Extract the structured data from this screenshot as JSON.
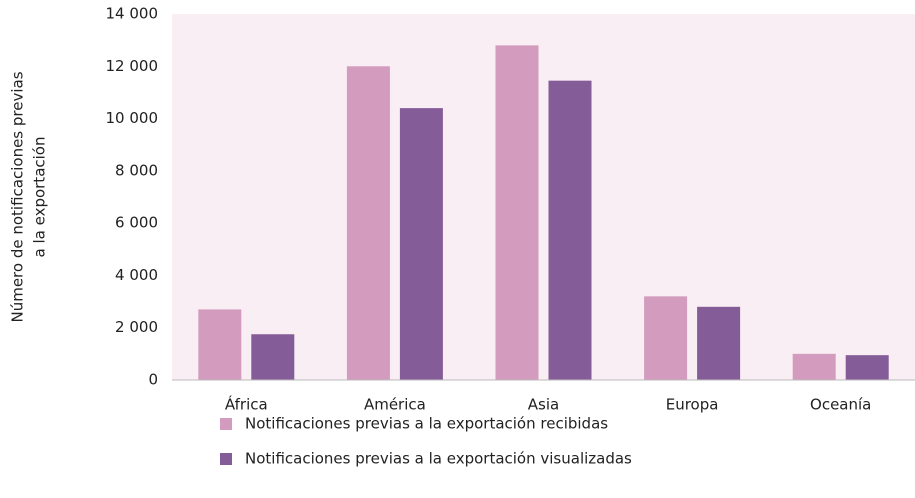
{
  "chart_data": {
    "type": "bar",
    "ylabel": [
      "Número de notificaciones previas",
      "a la exportación"
    ],
    "categories": [
      "África",
      "América",
      "Asia",
      "Europa",
      "Oceanía"
    ],
    "series": [
      {
        "name": "Notificaciones previas a la exportación recibidas",
        "color": "#d39bbd",
        "values": [
          2700,
          12000,
          12800,
          3200,
          1000
        ]
      },
      {
        "name": "Notificaciones previas a la exportación visualizadas",
        "color": "#845c98",
        "values": [
          1750,
          10400,
          11450,
          2800,
          950
        ]
      }
    ],
    "ylim": [
      0,
      14000
    ],
    "yticks": [
      0,
      {
        "value": 2000,
        "label": "2 000"
      },
      {
        "value": 4000,
        "label": "4 000"
      },
      {
        "value": 6000,
        "label": "6 000"
      },
      {
        "value": 8000,
        "label": "8 000"
      },
      {
        "value": 10000,
        "label": "10 000"
      },
      {
        "value": 12000,
        "label": "12 000"
      },
      {
        "value": 14000,
        "label": "14 000"
      }
    ],
    "plot_background": "#f9eef3"
  }
}
